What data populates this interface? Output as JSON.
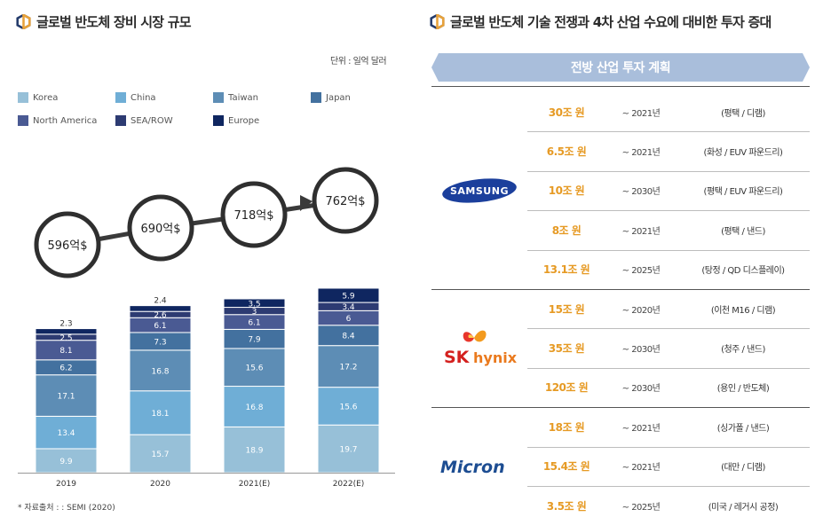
{
  "left": {
    "title": "글로벌 반도체 장비 시장 규모",
    "unit": "단위 : 일억 달러",
    "source": "* 자료출처 : : SEMI (2020)",
    "circles": [
      "596억$",
      "690억$",
      "718억$",
      "762억$"
    ]
  },
  "right": {
    "title": "글로벌 반도체 기술 전쟁과 4차 산업 수요에 대비한 투자 증대",
    "header": "전방 산업 투자 계획",
    "companies": [
      {
        "name": "SAMSUNG",
        "rows": [
          {
            "amount": "30조 원",
            "year": "~ 2021년",
            "location": "(평택 / 디램)"
          },
          {
            "amount": "6.5조 원",
            "year": "~ 2021년",
            "location": "(화성 / EUV 파운드리)"
          },
          {
            "amount": "10조 원",
            "year": "~ 2030년",
            "location": "(평택 / EUV 파운드리)"
          },
          {
            "amount": "8조 원",
            "year": "~ 2021년",
            "location": "(평택 / 낸드)"
          },
          {
            "amount": "13.1조 원",
            "year": "~ 2025년",
            "location": "(탕정 / QD 디스플레이)"
          }
        ]
      },
      {
        "name_sk": "SK",
        "name_hynix": "hynix",
        "rows": [
          {
            "amount": "15조 원",
            "year": "~ 2020년",
            "location": "(이천 M16 / 디램)"
          },
          {
            "amount": "35조 원",
            "year": "~ 2030년",
            "location": "(청주  / 낸드)"
          },
          {
            "amount": "120조 원",
            "year": "~ 2030년",
            "location": "(용인 / 반도체)"
          }
        ]
      },
      {
        "name": "Micron",
        "rows": [
          {
            "amount": "18조 원",
            "year": "~ 2021년",
            "location": "(싱가폴 / 낸드)"
          },
          {
            "amount": "15.4조 원",
            "year": "~ 2021년",
            "location": "(대만 / 디램)"
          },
          {
            "amount": "3.5조 원",
            "year": "~ 2025년",
            "location": "(미국 / 레거시 공정)"
          }
        ]
      }
    ]
  },
  "chart_data": {
    "type": "bar",
    "stacked": true,
    "categories": [
      "2019",
      "2020",
      "2021(E)",
      "2022(E)"
    ],
    "series": [
      {
        "name": "Korea",
        "color": "#97c0d8",
        "values": [
          9.9,
          15.7,
          18.9,
          19.7
        ]
      },
      {
        "name": "China",
        "color": "#6faed6",
        "values": [
          13.4,
          18.1,
          16.8,
          15.6
        ]
      },
      {
        "name": "Taiwan",
        "color": "#5d8db5",
        "values": [
          17.1,
          16.8,
          15.6,
          17.2
        ]
      },
      {
        "name": "Japan",
        "color": "#43719f",
        "values": [
          6.2,
          7.3,
          7.9,
          8.4
        ]
      },
      {
        "name": "North America",
        "color": "#4a5a93",
        "values": [
          8.1,
          6.1,
          6.1,
          6
        ]
      },
      {
        "name": "SEA/ROW",
        "color": "#2d3b72",
        "values": [
          2.5,
          2.6,
          3,
          3.4
        ]
      },
      {
        "name": "Europe",
        "color": "#0f2660",
        "values": [
          2.3,
          2.4,
          3.5,
          5.9
        ]
      }
    ],
    "legend_position": "top-left",
    "grid": false
  }
}
